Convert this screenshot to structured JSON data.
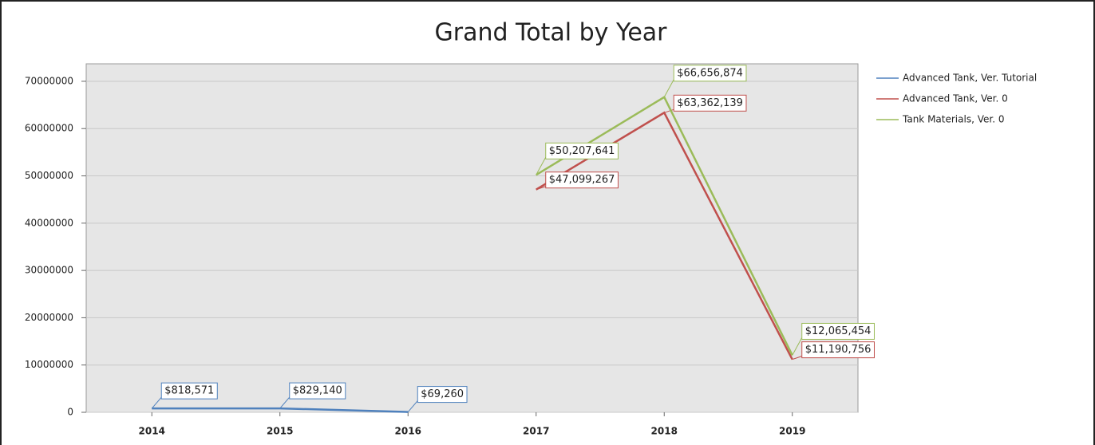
{
  "chart_data": {
    "type": "line",
    "title": "Grand Total by Year",
    "categories": [
      "2014",
      "2015",
      "2016",
      "2017",
      "2018",
      "2019"
    ],
    "series": [
      {
        "name": "Advanced Tank, Ver. Tutorial",
        "color": "#4f81bd",
        "values": [
          818571,
          829140,
          69260,
          null,
          null,
          null
        ],
        "value_labels": [
          "$818,571",
          "$829,140",
          "$69,260",
          null,
          null,
          null
        ]
      },
      {
        "name": "Advanced Tank, Ver. 0",
        "color": "#c0504d",
        "values": [
          null,
          null,
          null,
          47099267,
          63362139,
          11190756
        ],
        "value_labels": [
          null,
          null,
          null,
          "$47,099,267",
          "$63,362,139",
          "$11,190,756"
        ]
      },
      {
        "name": "Tank Materials, Ver. 0",
        "color": "#9bbb59",
        "values": [
          null,
          null,
          null,
          50207641,
          66656874,
          12065454
        ],
        "value_labels": [
          null,
          null,
          null,
          "$50,207,641",
          "$66,656,874",
          "$12,065,454"
        ]
      }
    ],
    "ylim": [
      0,
      73700000
    ],
    "yticks": [
      0,
      10000000,
      20000000,
      30000000,
      40000000,
      50000000,
      60000000,
      70000000
    ],
    "grid": true,
    "legend": "right"
  }
}
